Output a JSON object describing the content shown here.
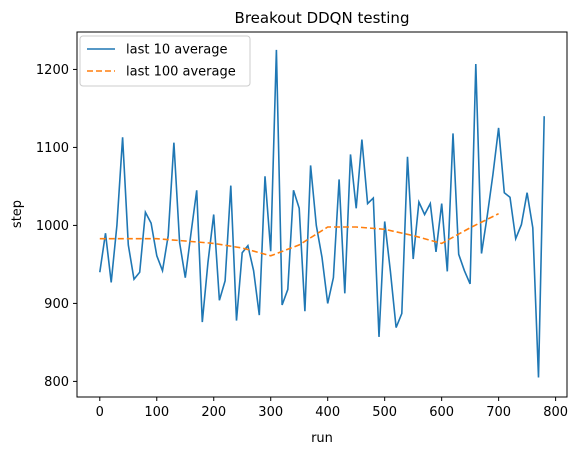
{
  "chart_data": {
    "type": "line",
    "title": "Breakout DDQN testing",
    "xlabel": "run",
    "ylabel": "step",
    "xlim": [
      -40,
      820
    ],
    "ylim": [
      780,
      1248
    ],
    "xticks": [
      0,
      100,
      200,
      300,
      400,
      500,
      600,
      700,
      800
    ],
    "yticks": [
      800,
      900,
      1000,
      1100,
      1200
    ],
    "grid": false,
    "legend_position": "top-left",
    "series": [
      {
        "name": "last 10 average",
        "color": "#1f77b4",
        "style": "solid",
        "x": [
          0,
          10,
          20,
          30,
          40,
          50,
          60,
          70,
          80,
          90,
          100,
          110,
          120,
          130,
          140,
          150,
          160,
          170,
          180,
          190,
          200,
          210,
          220,
          230,
          240,
          250,
          260,
          270,
          280,
          290,
          300,
          310,
          320,
          330,
          340,
          350,
          360,
          370,
          380,
          390,
          400,
          410,
          420,
          430,
          440,
          450,
          460,
          470,
          480,
          490,
          500,
          510,
          520,
          530,
          540,
          550,
          560,
          570,
          580,
          590,
          600,
          610,
          620,
          630,
          640,
          650,
          660,
          670,
          680,
          690,
          700,
          710,
          720,
          730,
          740,
          750,
          760,
          770,
          780
        ],
        "values": [
          940,
          990,
          927,
          1000,
          1113,
          975,
          931,
          940,
          1017,
          1003,
          961,
          942,
          987,
          1106,
          978,
          933,
          990,
          1045,
          876,
          953,
          1014,
          904,
          929,
          1051,
          878,
          965,
          974,
          942,
          885,
          1063,
          967,
          1225,
          898,
          918,
          1045,
          1022,
          890,
          1077,
          1000,
          959,
          900,
          933,
          1059,
          913,
          1091,
          1022,
          1110,
          1028,
          1035,
          857,
          1005,
          941,
          869,
          887,
          1088,
          957,
          1030,
          1014,
          1028,
          966,
          1028,
          941,
          1118,
          963,
          942,
          925,
          1207,
          964,
          1012,
          1065,
          1125,
          1042,
          1036,
          983,
          1001,
          1042,
          997,
          805,
          1140
        ]
      },
      {
        "name": "last 100 average",
        "color": "#ff7f0e",
        "style": "dashed",
        "x": [
          0,
          50,
          100,
          150,
          200,
          250,
          300,
          350,
          400,
          450,
          500,
          550,
          600,
          650,
          700
        ],
        "values": [
          983,
          983,
          983,
          980,
          977,
          971,
          961,
          975,
          998,
          998,
          995,
          987,
          977,
          997,
          1015
        ]
      }
    ]
  }
}
